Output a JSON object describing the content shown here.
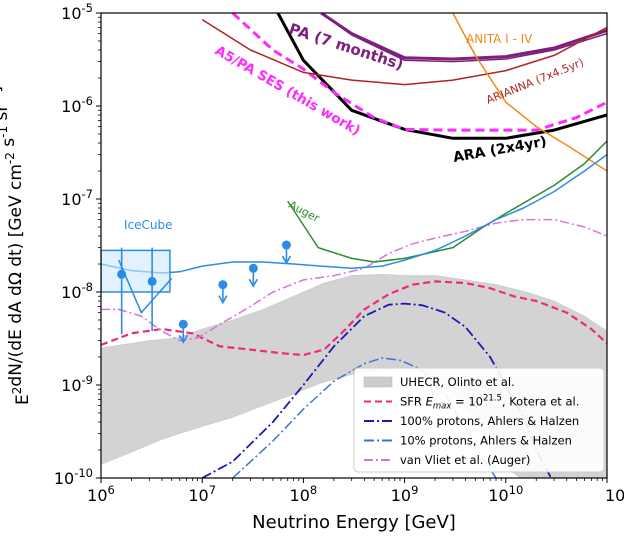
{
  "chart_data": {
    "type": "line",
    "xlabel": "Neutrino Energy [GeV]",
    "ylabel": "E^2dN/(dE dA dΩ dt) [GeV cm^-2 s^-1 sr^-1]",
    "xscale": "log",
    "yscale": "log",
    "xlim": [
      1000000.0,
      100000000000.0
    ],
    "ylim": [
      1e-10,
      1e-05
    ],
    "x_ticks": [
      {
        "value": 1000000.0,
        "label": "10^6"
      },
      {
        "value": 10000000.0,
        "label": "10^7"
      },
      {
        "value": 100000000.0,
        "label": "10^8"
      },
      {
        "value": 1000000000.0,
        "label": "10^9"
      },
      {
        "value": 10000000000.0,
        "label": "10^10"
      },
      {
        "value": 100000000000.0,
        "label": "10^11"
      }
    ],
    "y_ticks": [
      {
        "value": 1e-10,
        "label": "10^-10"
      },
      {
        "value": 1e-09,
        "label": "10^-9"
      },
      {
        "value": 1e-08,
        "label": "10^-8"
      },
      {
        "value": 1e-07,
        "label": "10^-7"
      },
      {
        "value": 1e-06,
        "label": "10^-6"
      },
      {
        "value": 1e-05,
        "label": "10^-5"
      }
    ],
    "legend_position": "bottom-right",
    "band": {
      "name": "UHECR, Olinto et al.",
      "color": "#cccccc",
      "upper": [
        [
          1000000.0,
          2.5e-09
        ],
        [
          3000000.0,
          3e-09
        ],
        [
          5600000.0,
          3.2e-09
        ],
        [
          10000000.0,
          4e-09
        ],
        [
          20000000.0,
          5e-09
        ],
        [
          40000000.0,
          6.5e-09
        ],
        [
          80000000.0,
          9e-09
        ],
        [
          160000000.0,
          1.25e-08
        ],
        [
          300000000.0,
          1.5e-08
        ],
        [
          600000000.0,
          1.55e-08
        ],
        [
          1000000000.0,
          1.5e-08
        ],
        [
          2000000000.0,
          1.5e-08
        ],
        [
          4000000000.0,
          1.35e-08
        ],
        [
          8000000000.0,
          1.2e-08
        ],
        [
          16000000000.0,
          1e-08
        ],
        [
          30000000000.0,
          8e-09
        ],
        [
          60000000000.0,
          5.5e-09
        ],
        [
          100000000000.0,
          3.8e-09
        ]
      ],
      "lower": [
        [
          1000000.0,
          1.4e-10
        ],
        [
          2000000.0,
          1.9e-10
        ],
        [
          4000000.0,
          2.6e-10
        ],
        [
          10000000.0,
          3.6e-10
        ],
        [
          20000000.0,
          4.5e-10
        ],
        [
          40000000.0,
          6e-10
        ],
        [
          80000000.0,
          8e-10
        ],
        [
          150000000.0,
          1.05e-09
        ],
        [
          300000000.0,
          1.3e-09
        ],
        [
          600000000.0,
          1.45e-09
        ],
        [
          1000000000.0,
          1.5e-09
        ],
        [
          1500000000.0,
          1.4e-09
        ],
        [
          2000000000.0,
          1.2e-09
        ],
        [
          4000000000.0,
          6e-10
        ],
        [
          7000000000.0,
          2.5e-10
        ],
        [
          10000000000.0,
          1.3e-10
        ],
        [
          14000000000.0,
          1e-10
        ],
        [
          100000000000.0,
          1e-10
        ]
      ]
    },
    "series": [
      {
        "name": "SFR E_max=10^21.5, Kotera et al.",
        "color": "#ee2a7b",
        "dash": "7,4",
        "width": 2.2,
        "points": [
          [
            1000000.0,
            2.7e-09
          ],
          [
            2000000.0,
            3.6e-09
          ],
          [
            4000000.0,
            4e-09
          ],
          [
            8000000.0,
            3.6e-09
          ],
          [
            15000000.0,
            2.6e-09
          ],
          [
            30000000.0,
            2.4e-09
          ],
          [
            60000000.0,
            2.2e-09
          ],
          [
            100000000.0,
            2.1e-09
          ],
          [
            160000000.0,
            2.4e-09
          ],
          [
            250000000.0,
            3.8e-09
          ],
          [
            400000000.0,
            6.5e-09
          ],
          [
            700000000.0,
            9.5e-09
          ],
          [
            1200000000.0,
            1.2e-08
          ],
          [
            2000000000.0,
            1.3e-08
          ],
          [
            4000000000.0,
            1.25e-08
          ],
          [
            7000000000.0,
            1.1e-08
          ],
          [
            12000000000.0,
            9e-09
          ],
          [
            20000000000.0,
            8e-09
          ],
          [
            40000000000.0,
            6e-09
          ],
          [
            70000000000.0,
            4e-09
          ],
          [
            100000000000.0,
            2.8e-09
          ]
        ]
      },
      {
        "name": "100% protons, Ahlers & Halzen",
        "color": "#1a1ab0",
        "dash": "10,3,2,3",
        "width": 1.8,
        "points": [
          [
            10000000.0,
            1e-10
          ],
          [
            20000000.0,
            1.5e-10
          ],
          [
            50000000.0,
            4e-10
          ],
          [
            100000000.0,
            1e-09
          ],
          [
            200000000.0,
            2.6e-09
          ],
          [
            400000000.0,
            5.5e-09
          ],
          [
            700000000.0,
            7.3e-09
          ],
          [
            1000000000.0,
            7.5e-09
          ],
          [
            1500000000.0,
            7.2e-09
          ],
          [
            2500000000.0,
            6e-09
          ],
          [
            4000000000.0,
            4.2e-09
          ],
          [
            7000000000.0,
            2e-09
          ],
          [
            10000000000.0,
            1e-09
          ],
          [
            15000000000.0,
            4.5e-10
          ],
          [
            20000000000.0,
            2e-10
          ],
          [
            28000000000.0,
            1e-10
          ]
        ]
      },
      {
        "name": "10% protons, Ahlers & Halzen",
        "color": "#3a72d8",
        "dash": "10,3,2,3",
        "width": 1.5,
        "points": [
          [
            20000000.0,
            1e-10
          ],
          [
            50000000.0,
            2.5e-10
          ],
          [
            100000000.0,
            5.5e-10
          ],
          [
            200000000.0,
            1.1e-09
          ],
          [
            400000000.0,
            1.7e-09
          ],
          [
            600000000.0,
            1.95e-09
          ],
          [
            900000000.0,
            1.85e-09
          ],
          [
            1400000000.0,
            1.5e-09
          ],
          [
            2500000000.0,
            8e-10
          ],
          [
            4000000000.0,
            3.5e-10
          ],
          [
            6000000000.0,
            1.6e-10
          ],
          [
            8000000000.0,
            1e-10
          ]
        ]
      },
      {
        "name": "van Vliet et al. (Auger)",
        "color": "#d874d8",
        "dash": "9,3,2,3",
        "width": 1.5,
        "points": [
          [
            1000000.0,
            6.5e-09
          ],
          [
            1500000.0,
            6.5e-09
          ],
          [
            2500000.0,
            5.5e-09
          ],
          [
            4000000.0,
            3.8e-09
          ],
          [
            6000000.0,
            3e-09
          ],
          [
            9000000.0,
            3.2e-09
          ],
          [
            15000000.0,
            4.5e-09
          ],
          [
            30000000.0,
            7e-09
          ],
          [
            50000000.0,
            1e-08
          ],
          [
            100000000.0,
            1.35e-08
          ],
          [
            200000000.0,
            1.5e-08
          ],
          [
            400000000.0,
            1.8e-08
          ],
          [
            700000000.0,
            2.6e-08
          ],
          [
            1200000000.0,
            3.3e-08
          ],
          [
            2000000000.0,
            3.8e-08
          ],
          [
            4000000000.0,
            4.5e-08
          ],
          [
            8000000000.0,
            5.5e-08
          ],
          [
            15000000000.0,
            6e-08
          ],
          [
            30000000000.0,
            6e-08
          ],
          [
            60000000000.0,
            5e-08
          ],
          [
            100000000000.0,
            4e-08
          ]
        ]
      },
      {
        "name": "ARA (2x4yr)",
        "color": "#000000",
        "dash": "",
        "width": 3,
        "points": [
          [
            56000000.0,
            1e-05
          ],
          [
            100000000.0,
            3.1e-06
          ],
          [
            300000000.0,
            9e-07
          ],
          [
            1000000000.0,
            5.6e-07
          ],
          [
            3000000000.0,
            4.5e-07
          ],
          [
            10000000000.0,
            4.5e-07
          ],
          [
            30000000000.0,
            5.5e-07
          ],
          [
            100000000000.0,
            8e-07
          ]
        ]
      },
      {
        "name": "A5/PA SES (this work)",
        "color": "#ff2aff",
        "dash": "9,5",
        "width": 3,
        "points": [
          [
            20000000.0,
            1e-05
          ],
          [
            50000000.0,
            4e-06
          ],
          [
            100000000.0,
            2.5e-06
          ],
          [
            200000000.0,
            1.4e-06
          ],
          [
            500000000.0,
            7.5e-07
          ],
          [
            1000000000.0,
            5.6e-07
          ],
          [
            3000000000.0,
            5.5e-07
          ],
          [
            10000000000.0,
            5.5e-07
          ],
          [
            20000000000.0,
            5.5e-07
          ],
          [
            50000000000.0,
            7.5e-07
          ],
          [
            100000000000.0,
            1.1e-06
          ]
        ]
      },
      {
        "name": "PA (7 months)",
        "color": "#7e1e7e",
        "dash": "",
        "width": 3,
        "points": [
          [
            150000000.0,
            1e-05
          ],
          [
            300000000.0,
            6e-06
          ],
          [
            1000000000.0,
            3.3e-06
          ],
          [
            3000000000.0,
            3.2e-06
          ],
          [
            10000000000.0,
            3.4e-06
          ],
          [
            30000000000.0,
            4.2e-06
          ],
          [
            100000000000.0,
            6.5e-06
          ]
        ]
      },
      {
        "name": "PA (7 months) (second curve)",
        "color": "#7e1e7e",
        "dash": "",
        "width": 1.5,
        "points": [
          [
            150000000.0,
            1e-05
          ],
          [
            300000000.0,
            5.8e-06
          ],
          [
            1000000000.0,
            3.1e-06
          ],
          [
            3000000000.0,
            3e-06
          ],
          [
            10000000000.0,
            3.2e-06
          ],
          [
            30000000000.0,
            4e-06
          ],
          [
            100000000000.0,
            6e-06
          ]
        ]
      },
      {
        "name": "ARIANNA (7x4.5yr)",
        "color": "#b22222",
        "dash": "",
        "width": 1.5,
        "points": [
          [
            10000000.0,
            8.5e-06
          ],
          [
            30000000.0,
            4e-06
          ],
          [
            100000000.0,
            2.3e-06
          ],
          [
            300000000.0,
            1.9e-06
          ],
          [
            1000000000.0,
            1.7e-06
          ],
          [
            3000000000.0,
            1.9e-06
          ],
          [
            10000000000.0,
            2.4e-06
          ],
          [
            30000000000.0,
            3.5e-06
          ],
          [
            100000000000.0,
            7e-06
          ]
        ]
      },
      {
        "name": "ANITA I - IV",
        "color": "#f18a18",
        "dash": "",
        "width": 1.5,
        "points": [
          [
            3000000000.0,
            1e-05
          ],
          [
            5000000000.0,
            3.5e-06
          ],
          [
            10000000000.0,
            1.1e-06
          ],
          [
            20000000000.0,
            6e-07
          ],
          [
            40000000000.0,
            3.8e-07
          ],
          [
            100000000000.0,
            2e-07
          ]
        ]
      },
      {
        "name": "Auger",
        "color": "#2e8b2e",
        "dash": "",
        "width": 1.5,
        "points": [
          [
            70000000.0,
            9.5e-08
          ],
          [
            140000000.0,
            3e-08
          ],
          [
            300000000.0,
            2.3e-08
          ],
          [
            500000000.0,
            2.1e-08
          ],
          [
            1000000000.0,
            2.3e-08
          ],
          [
            3000000000.0,
            3e-08
          ],
          [
            6000000000.0,
            5e-08
          ],
          [
            10000000000.0,
            7e-08
          ],
          [
            30000000000.0,
            1.4e-07
          ],
          [
            60000000000.0,
            2.4e-07
          ],
          [
            100000000000.0,
            4.2e-07
          ]
        ]
      },
      {
        "name": "IceCube",
        "color": "#2b8ce6",
        "dash": "",
        "width": 1.5,
        "points": [
          [
            1000000.0,
            2e-08
          ],
          [
            2000000.0,
            1.7e-08
          ],
          [
            4000000.0,
            1.6e-08
          ],
          [
            6000000.0,
            1.65e-08
          ],
          [
            10000000.0,
            1.9e-08
          ],
          [
            20000000.0,
            2.1e-08
          ],
          [
            40000000.0,
            2.1e-08
          ],
          [
            80000000.0,
            2e-08
          ],
          [
            150000000.0,
            1.9e-08
          ],
          [
            300000000.0,
            1.8e-08
          ],
          [
            600000000.0,
            1.9e-08
          ],
          [
            1000000000.0,
            2.2e-08
          ],
          [
            2000000000.0,
            2.8e-08
          ],
          [
            4000000000.0,
            4e-08
          ],
          [
            8000000000.0,
            6e-08
          ],
          [
            15000000000.0,
            8e-08
          ],
          [
            30000000000.0,
            1.2e-07
          ],
          [
            60000000000.0,
            2e-07
          ],
          [
            100000000000.0,
            3e-07
          ]
        ]
      }
    ],
    "icecube_upper_limits": [
      {
        "x": 1600000.0,
        "y": 1.55e-08,
        "err_low": 3.5e-09,
        "err_high": 3e-08
      },
      {
        "x": 3200000.0,
        "y": 1.3e-08,
        "err_low": 3.8e-09,
        "err_high": 3e-08
      },
      {
        "x": 6500000.0,
        "y": 4.5e-09,
        "arrow": true
      },
      {
        "x": 16000000.0,
        "y": 1.2e-08,
        "arrow": true
      },
      {
        "x": 32000000.0,
        "y": 1.8e-08,
        "arrow": true
      },
      {
        "x": 68000000.0,
        "y": 3.2e-08,
        "arrow": true
      }
    ],
    "icecube_box": {
      "x0": 1000000.0,
      "x1": 4800000.0,
      "y0": 1e-08,
      "y1": 2.8e-08
    },
    "icecube_sloped_points": [
      [
        1500000.0,
        2.2e-08
      ],
      [
        2500000.0,
        6e-09
      ],
      [
        5000000.0,
        1.4e-08
      ]
    ],
    "labels": {
      "ara": "ARA (2x4yr)",
      "pa": "PA (7 months)",
      "a5": "A5/PA SES (this work)",
      "anita": "ANITA I - IV",
      "arianna": "ARIANNA (7x4.5yr)",
      "auger": "Auger",
      "icecube": "IceCube"
    },
    "legend": [
      {
        "type": "band",
        "label": "UHECR, Olinto et al.",
        "color": "#cccccc"
      },
      {
        "type": "line",
        "label": "SFR E_max = 10^21.5, Kotera et al.",
        "color": "#ee2a7b",
        "dash": "7,4"
      },
      {
        "type": "line",
        "label": "100% protons, Ahlers & Halzen",
        "color": "#1a1ab0",
        "dash": "10,3,2,3"
      },
      {
        "type": "line",
        "label": "10% protons, Ahlers & Halzen",
        "color": "#3a72d8",
        "dash": "10,3,2,3"
      },
      {
        "type": "line",
        "label": "van Vliet et al. (Auger)",
        "color": "#d874d8",
        "dash": "9,3,2,3"
      }
    ]
  }
}
